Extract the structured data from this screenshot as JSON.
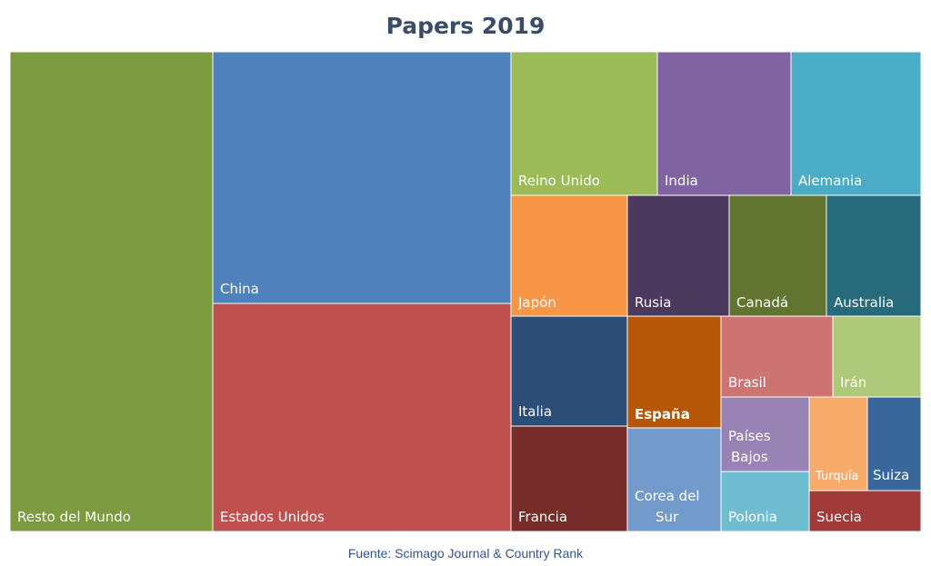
{
  "chart_data": {
    "type": "treemap",
    "title": "Papers 2019",
    "source": "Fuente: Scimago Journal & Country Rank",
    "cells": [
      {
        "label": "Resto del Mundo",
        "color": "#7c9a3e",
        "bold": false
      },
      {
        "label": "China",
        "color": "#4f81bd",
        "bold": false
      },
      {
        "label": "Estados Unidos",
        "color": "#c0504d",
        "bold": false
      },
      {
        "label": "Reino Unido",
        "color": "#9bbb59",
        "bold": false
      },
      {
        "label": "India",
        "color": "#8064a2",
        "bold": false
      },
      {
        "label": "Alemania",
        "color": "#4bacc6",
        "bold": false
      },
      {
        "label": "Japón",
        "color": "#f79646",
        "bold": false
      },
      {
        "label": "Rusia",
        "color": "#4b3a5e",
        "bold": false
      },
      {
        "label": "Canadá",
        "color": "#627530",
        "bold": false
      },
      {
        "label": "Australia",
        "color": "#276a7c",
        "bold": false
      },
      {
        "label": "Italia",
        "color": "#2c4d75",
        "bold": false
      },
      {
        "label": "Francia",
        "color": "#772c2a",
        "bold": false
      },
      {
        "label": "España",
        "color": "#b65708",
        "bold": true
      },
      {
        "label": "Corea del Sur",
        "color": "#729aca",
        "bold": false
      },
      {
        "label": "Brasil",
        "color": "#cd7371",
        "bold": false
      },
      {
        "label": "Irán",
        "color": "#afc97a",
        "bold": false
      },
      {
        "label": "Países Bajos",
        "color": "#9983b5",
        "bold": false
      },
      {
        "label": "Turquía",
        "color": "#f9ab6b",
        "bold": false
      },
      {
        "label": "Suiza",
        "color": "#3a679b",
        "bold": false
      },
      {
        "label": "Polonia",
        "color": "#6fbdd1",
        "bold": false
      },
      {
        "label": "Suecia",
        "color": "#a03b39",
        "bold": false
      }
    ]
  }
}
